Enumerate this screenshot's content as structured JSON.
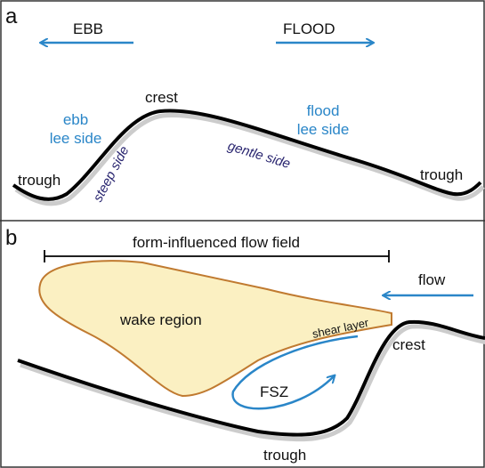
{
  "panel_a": {
    "letter": "a",
    "ebb": "EBB",
    "flood": "FLOOD",
    "crest": "crest",
    "ebb_lee_side": [
      "ebb",
      "lee side"
    ],
    "flood_lee_side": [
      "flood",
      "lee side"
    ],
    "trough_left": "trough",
    "trough_right": "trough",
    "steep_side": "steep side",
    "gentle_side": "gentle side"
  },
  "panel_b": {
    "letter": "b",
    "flow_field": "form-influenced flow field",
    "flow": "flow",
    "wake_region": "wake region",
    "shear_layer": "shear layer",
    "crest": "crest",
    "fsz": "FSZ",
    "trough": "trough"
  }
}
